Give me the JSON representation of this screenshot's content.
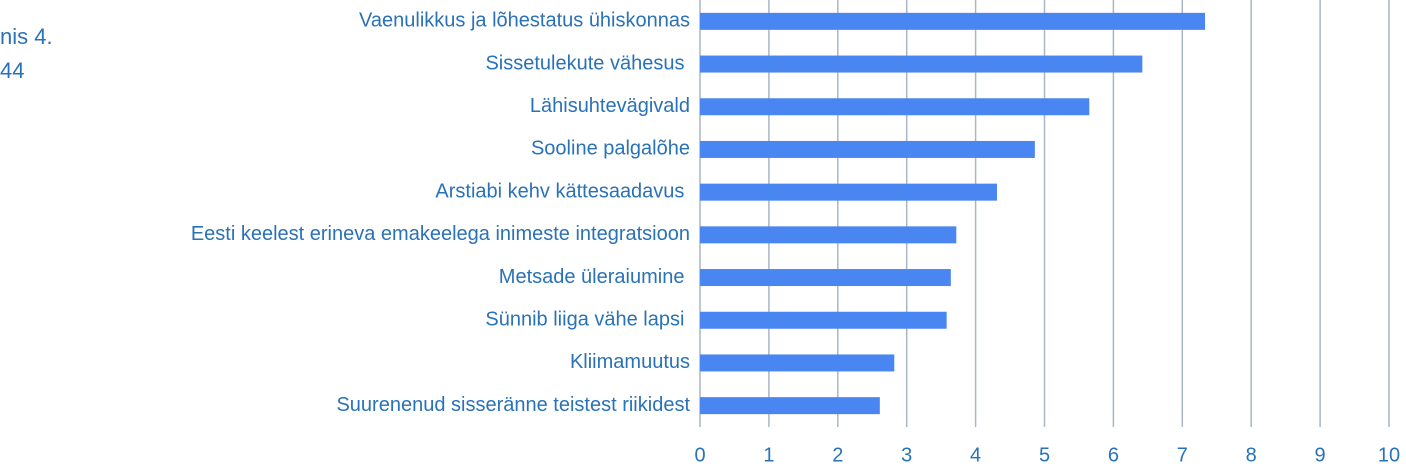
{
  "chart_data": {
    "type": "barh",
    "annotations": [
      "nis 4.",
      "44"
    ],
    "categories": [
      "Vaenulikkus ja lõhestatus ühiskonnas",
      "Sissetulekute vähesus ",
      "Lähisuhtevägivald",
      "Sooline palgalõhe",
      "Arstiabi kehv kättesaadavus ",
      "Eesti keelest erineva emakeelega inimeste integratsioon",
      "Metsade üleraiumine ",
      "Sünnib liiga vähe lapsi ",
      "Kliimamuutus",
      "Suurenenud sisseränne teistest riikidest"
    ],
    "values": [
      7.33,
      6.42,
      5.65,
      4.86,
      4.31,
      3.72,
      3.64,
      3.58,
      2.82,
      2.61
    ],
    "color": "#4a86f2",
    "xlim": [
      0,
      10
    ],
    "xticks": [
      0,
      1,
      2,
      3,
      4,
      5,
      6,
      7,
      8,
      9,
      10
    ],
    "grid": true
  }
}
